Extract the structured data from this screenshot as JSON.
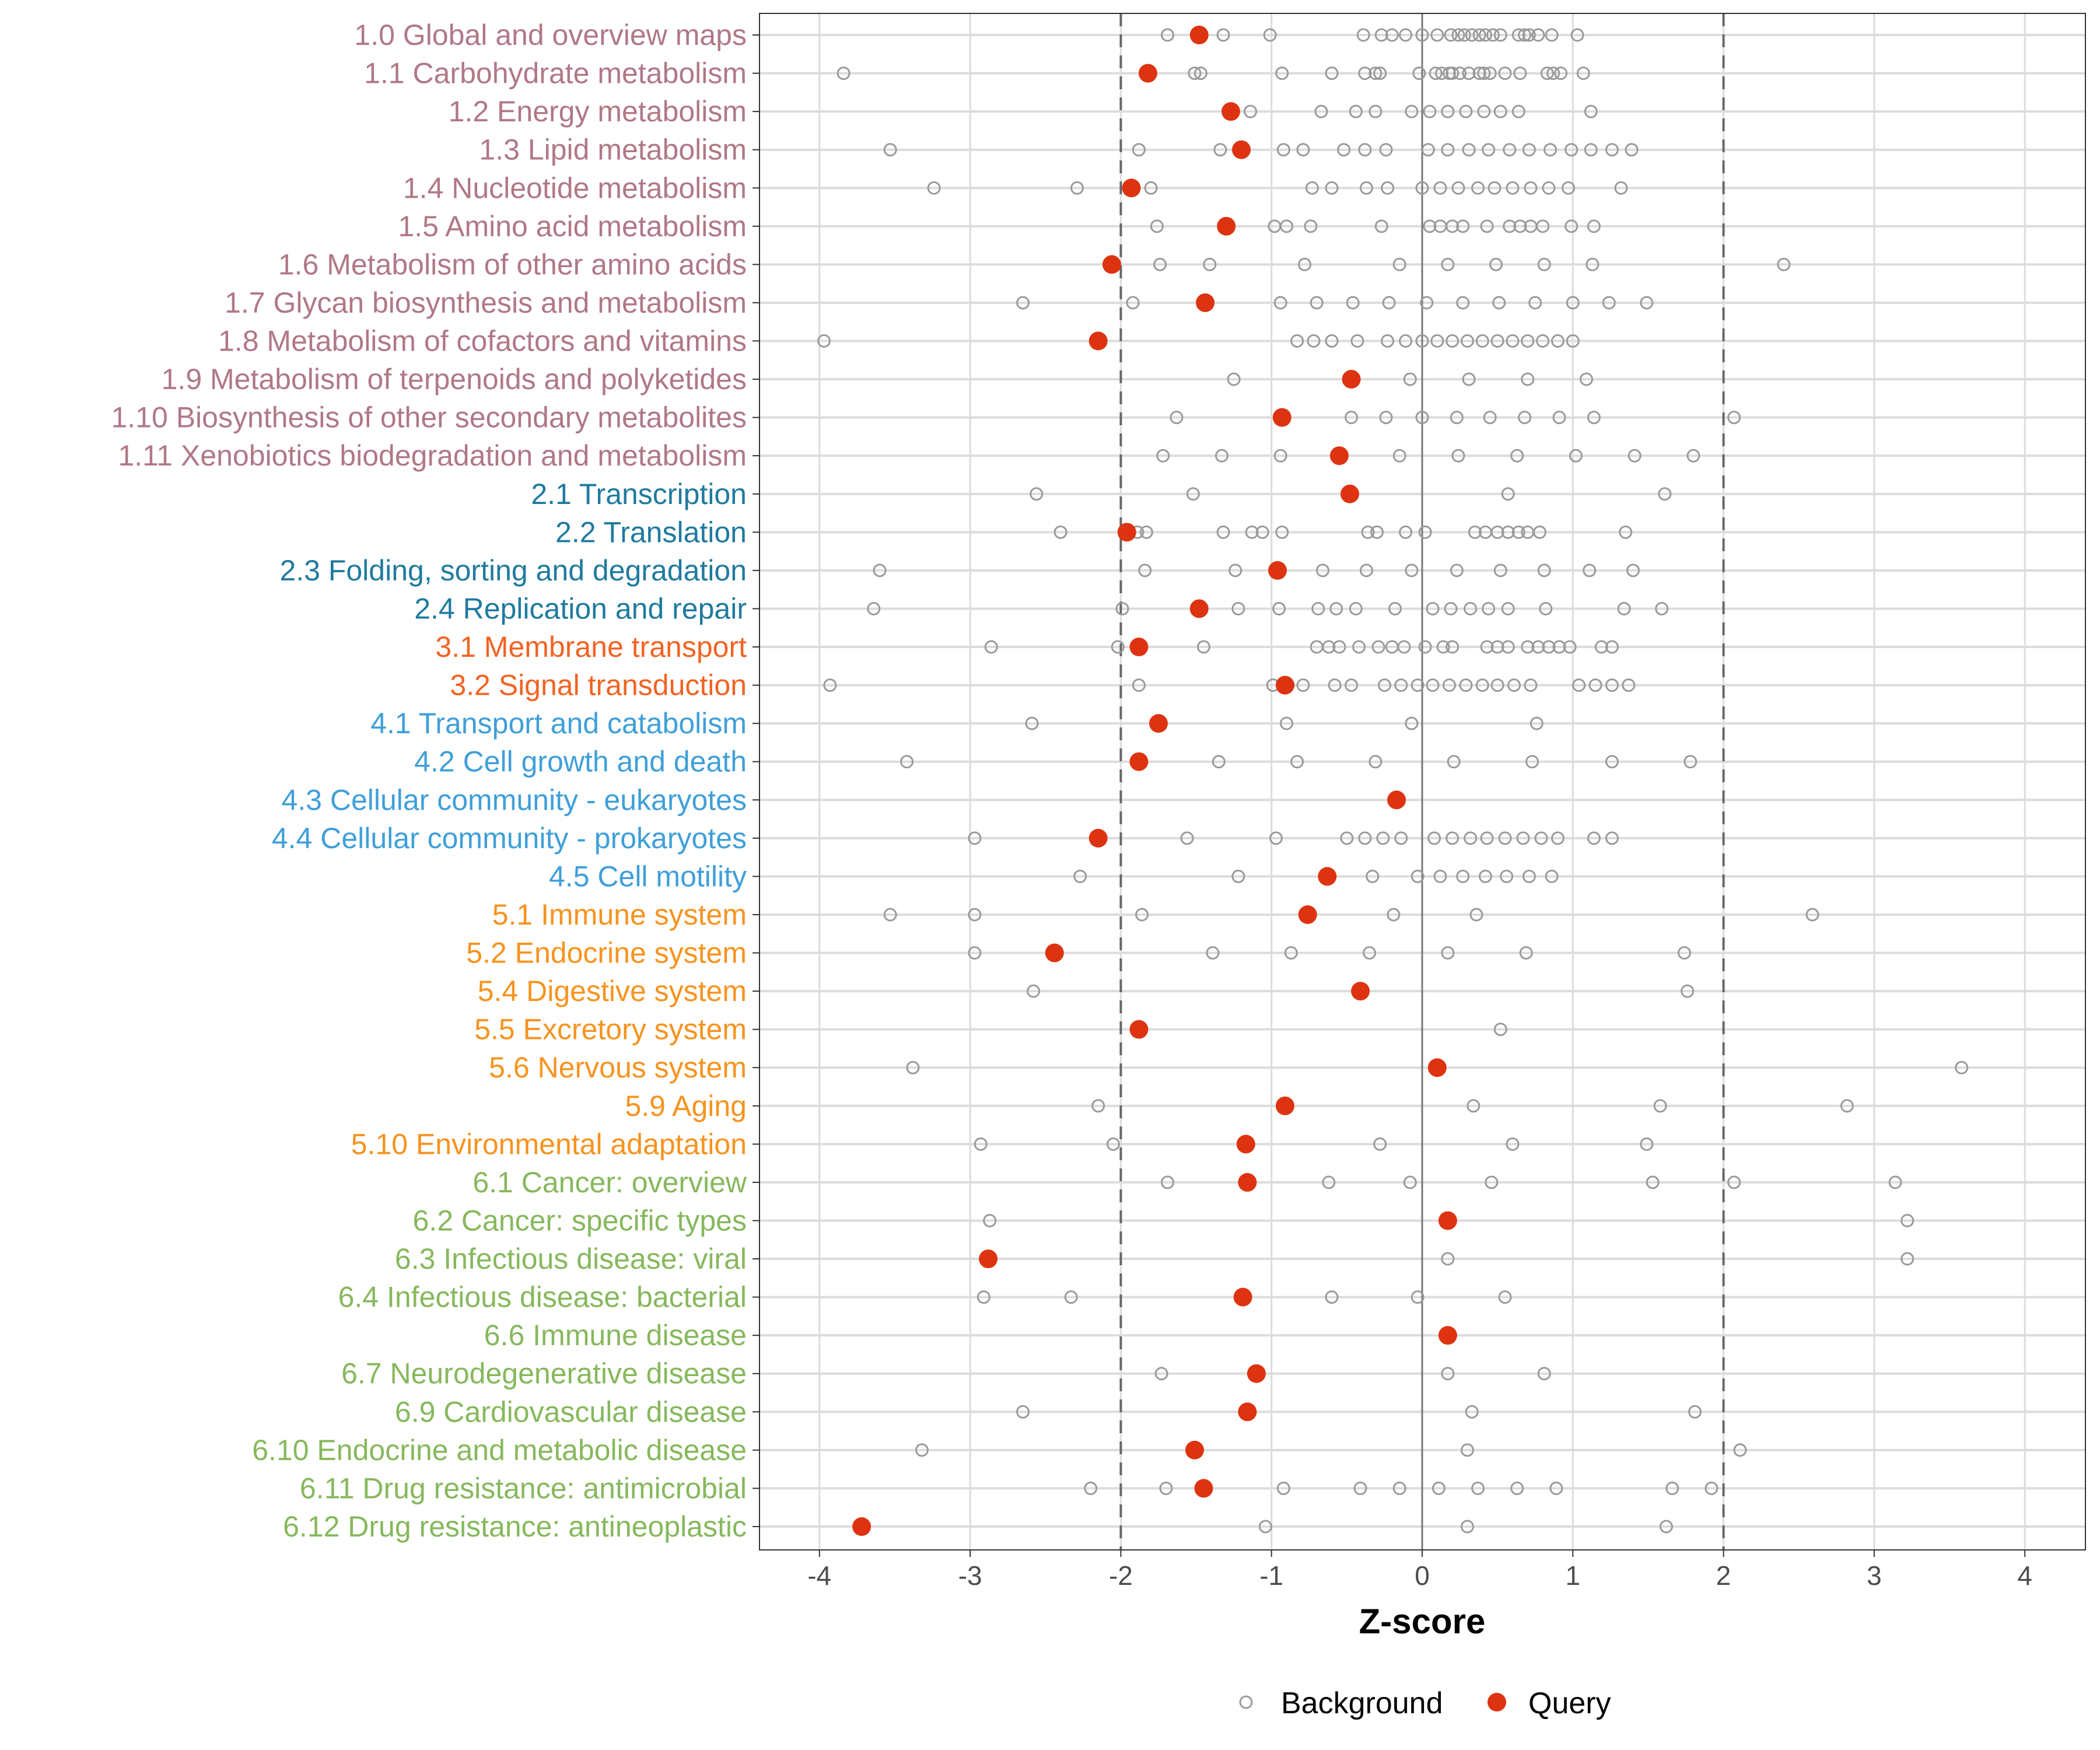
{
  "chart_data": {
    "type": "scatter",
    "title": "",
    "xlabel": "Z-score",
    "ylabel": "",
    "xlim": [
      -4.45,
      4.4
    ],
    "xticks": [
      -4,
      -3,
      -2,
      -1,
      0,
      1,
      2,
      3,
      4
    ],
    "xtick_labels": [
      "-4",
      "-3",
      "-2",
      "-1",
      "0",
      "1",
      "2",
      "3",
      "4"
    ],
    "reference_lines": {
      "dashed": [
        -2,
        2
      ],
      "solid": [
        0
      ]
    },
    "grid": true,
    "legend": {
      "placement": "bottom",
      "entries": [
        "Background",
        "Query"
      ]
    },
    "colors": {
      "query": "#dd3311",
      "background": "#9a9a9a",
      "group_1": "#b07886",
      "group_2": "#1f7a9e",
      "group_3": "#f26322",
      "group_4": "#3f9fd9",
      "group_5": "#f7931e",
      "group_6": "#86b85c"
    },
    "categories": [
      {
        "label": "1.0 Global and overview maps",
        "group": 1,
        "query": -1.48,
        "background": [
          -1.69,
          -1.32,
          -1.01,
          -0.39,
          -0.27,
          -0.2,
          -0.11,
          0,
          0.1,
          0.19,
          0.24,
          0.28,
          0.33,
          0.38,
          0.42,
          0.47,
          0.52,
          0.64,
          0.68,
          0.71,
          0.77,
          0.86,
          1.03
        ]
      },
      {
        "label": "1.1 Carbohydrate metabolism",
        "group": 1,
        "query": -1.82,
        "background": [
          -3.84,
          -1.51,
          -1.47,
          -0.93,
          -0.6,
          -0.38,
          -0.31,
          -0.28,
          -0.02,
          0.09,
          0.13,
          0.18,
          0.2,
          0.25,
          0.31,
          0.38,
          0.41,
          0.45,
          0.55,
          0.65,
          0.83,
          0.87,
          0.92,
          1.07
        ]
      },
      {
        "label": "1.2 Energy metabolism",
        "group": 1,
        "query": -1.27,
        "background": [
          -1.14,
          -0.67,
          -0.44,
          -0.31,
          -0.07,
          0.05,
          0.17,
          0.29,
          0.41,
          0.52,
          0.64,
          1.12
        ]
      },
      {
        "label": "1.3 Lipid metabolism",
        "group": 1,
        "query": -1.2,
        "background": [
          -3.53,
          -1.88,
          -1.34,
          -0.92,
          -0.79,
          -0.52,
          -0.38,
          -0.24,
          0.04,
          0.17,
          0.31,
          0.44,
          0.58,
          0.71,
          0.85,
          0.99,
          1.12,
          1.26,
          1.39
        ]
      },
      {
        "label": "1.4 Nucleotide metabolism",
        "group": 1,
        "query": -1.93,
        "background": [
          -3.24,
          -2.29,
          -1.8,
          -0.73,
          -0.6,
          -0.37,
          -0.23,
          0,
          0.12,
          0.24,
          0.37,
          0.48,
          0.6,
          0.72,
          0.84,
          0.97,
          1.32
        ]
      },
      {
        "label": "1.5 Amino acid metabolism",
        "group": 1,
        "query": -1.3,
        "background": [
          -1.76,
          -0.98,
          -0.9,
          -0.74,
          -0.27,
          0.05,
          0.12,
          0.2,
          0.27,
          0.43,
          0.58,
          0.65,
          0.72,
          0.8,
          0.99,
          1.14
        ]
      },
      {
        "label": "1.6 Metabolism of other amino acids",
        "group": 1,
        "query": -2.06,
        "background": [
          -1.74,
          -1.41,
          -0.78,
          -0.15,
          0.17,
          0.49,
          0.81,
          1.13,
          2.4
        ]
      },
      {
        "label": "1.7 Glycan biosynthesis and metabolism",
        "group": 1,
        "query": -1.44,
        "background": [
          -2.65,
          -1.92,
          -0.94,
          -0.7,
          -0.46,
          -0.22,
          0.03,
          0.27,
          0.51,
          0.75,
          1.0,
          1.24,
          1.49
        ]
      },
      {
        "label": "1.8 Metabolism of cofactors and vitamins",
        "group": 1,
        "query": -2.15,
        "background": [
          -3.97,
          -0.83,
          -0.72,
          -0.6,
          -0.43,
          -0.23,
          -0.11,
          0,
          0.1,
          0.2,
          0.3,
          0.4,
          0.5,
          0.6,
          0.7,
          0.8,
          0.9,
          1.0
        ]
      },
      {
        "label": "1.9 Metabolism of terpenoids and polyketides",
        "group": 1,
        "query": -0.47,
        "background": [
          -1.25,
          -0.08,
          0.31,
          0.7,
          1.09
        ]
      },
      {
        "label": "1.10 Biosynthesis of other secondary metabolites",
        "group": 1,
        "query": -0.93,
        "background": [
          -1.63,
          -0.47,
          -0.24,
          0,
          0.23,
          0.45,
          0.68,
          0.91,
          1.14,
          2.07
        ]
      },
      {
        "label": "1.11 Xenobiotics biodegradation and metabolism",
        "group": 1,
        "query": -0.55,
        "background": [
          -1.72,
          -1.33,
          -0.94,
          -0.15,
          0.24,
          0.63,
          1.02,
          1.41,
          1.8
        ]
      },
      {
        "label": "2.1 Transcription",
        "group": 2,
        "query": -0.48,
        "background": [
          -2.56,
          -1.52,
          0.57,
          1.61
        ]
      },
      {
        "label": "2.2 Translation",
        "group": 2,
        "query": -1.96,
        "background": [
          -2.4,
          -1.89,
          -1.83,
          -1.32,
          -1.13,
          -1.06,
          -0.93,
          -0.36,
          -0.3,
          -0.11,
          0.02,
          0.35,
          0.42,
          0.5,
          0.57,
          0.64,
          0.7,
          0.78,
          1.35
        ]
      },
      {
        "label": "2.3 Folding, sorting and degradation",
        "group": 2,
        "query": -0.96,
        "background": [
          -3.6,
          -1.84,
          -1.24,
          -0.66,
          -0.37,
          -0.07,
          0.23,
          0.52,
          0.81,
          1.11,
          1.4
        ]
      },
      {
        "label": "2.4 Replication and repair",
        "group": 2,
        "query": -1.48,
        "background": [
          -3.64,
          -1.99,
          -1.22,
          -0.95,
          -0.69,
          -0.57,
          -0.44,
          -0.18,
          0.07,
          0.19,
          0.32,
          0.44,
          0.57,
          0.82,
          1.34,
          1.59
        ]
      },
      {
        "label": "3.1 Membrane transport",
        "group": 3,
        "query": -1.88,
        "background": [
          -2.86,
          -2.02,
          -1.45,
          -0.7,
          -0.62,
          -0.55,
          -0.42,
          -0.29,
          -0.2,
          -0.12,
          0.02,
          0.14,
          0.2,
          0.43,
          0.5,
          0.57,
          0.7,
          0.77,
          0.84,
          0.91,
          0.98,
          1.19,
          1.26
        ]
      },
      {
        "label": "3.2 Signal transduction",
        "group": 3,
        "query": -0.91,
        "background": [
          -3.93,
          -1.88,
          -0.99,
          -0.89,
          -0.79,
          -0.58,
          -0.47,
          -0.25,
          -0.14,
          -0.03,
          0.07,
          0.18,
          0.29,
          0.4,
          0.5,
          0.61,
          0.72,
          1.04,
          1.15,
          1.26,
          1.37
        ]
      },
      {
        "label": "4.1 Transport and catabolism",
        "group": 4,
        "query": -1.75,
        "background": [
          -2.59,
          -0.9,
          -0.07,
          0.76
        ]
      },
      {
        "label": "4.2 Cell growth and death",
        "group": 4,
        "query": -1.88,
        "background": [
          -3.42,
          -1.35,
          -0.83,
          -0.31,
          0.21,
          0.73,
          1.26,
          1.78
        ]
      },
      {
        "label": "4.3 Cellular community - eukaryotes",
        "group": 4,
        "query": -0.17,
        "background": []
      },
      {
        "label": "4.4 Cellular community - prokaryotes",
        "group": 4,
        "query": -2.15,
        "background": [
          -2.97,
          -1.56,
          -0.97,
          -0.5,
          -0.38,
          -0.26,
          -0.14,
          0.08,
          0.2,
          0.32,
          0.43,
          0.55,
          0.67,
          0.79,
          0.9,
          1.14,
          1.26
        ]
      },
      {
        "label": "4.5 Cell motility",
        "group": 4,
        "query": -0.63,
        "background": [
          -2.27,
          -1.22,
          -0.33,
          -0.03,
          0.12,
          0.27,
          0.42,
          0.56,
          0.71,
          0.86
        ]
      },
      {
        "label": "5.1 Immune system",
        "group": 5,
        "query": -0.76,
        "background": [
          -3.53,
          -2.97,
          -1.86,
          -0.19,
          0.36,
          2.59
        ]
      },
      {
        "label": "5.2 Endocrine system",
        "group": 5,
        "query": -2.44,
        "background": [
          -2.97,
          -1.39,
          -0.87,
          -0.35,
          0.17,
          0.69,
          1.74
        ]
      },
      {
        "label": "5.4 Digestive system",
        "group": 5,
        "query": -0.41,
        "background": [
          -2.58,
          1.76
        ]
      },
      {
        "label": "5.5 Excretory system",
        "group": 5,
        "query": -1.88,
        "background": [
          0.52
        ]
      },
      {
        "label": "5.6 Nervous system",
        "group": 5,
        "query": 0.1,
        "background": [
          -3.38,
          3.58
        ]
      },
      {
        "label": "5.9 Aging",
        "group": 5,
        "query": -0.91,
        "background": [
          -2.15,
          0.34,
          1.58,
          2.82
        ]
      },
      {
        "label": "5.10 Environmental adaptation",
        "group": 5,
        "query": -1.17,
        "background": [
          -2.93,
          -2.05,
          -0.28,
          0.6,
          1.49
        ]
      },
      {
        "label": "6.1 Cancer: overview",
        "group": 6,
        "query": -1.16,
        "background": [
          -1.69,
          -0.62,
          -0.08,
          0.46,
          1.53,
          2.07,
          3.14
        ]
      },
      {
        "label": "6.2 Cancer: specific types",
        "group": 6,
        "query": 0.17,
        "background": [
          -2.87,
          3.22
        ]
      },
      {
        "label": "6.3 Infectious disease: viral",
        "group": 6,
        "query": -2.88,
        "background": [
          0.17,
          3.22
        ]
      },
      {
        "label": "6.4 Infectious disease: bacterial",
        "group": 6,
        "query": -1.19,
        "background": [
          -2.91,
          -2.33,
          -0.6,
          -0.03,
          0.55
        ]
      },
      {
        "label": "6.6 Immune disease",
        "group": 6,
        "query": 0.17,
        "background": []
      },
      {
        "label": "6.7 Neurodegenerative disease",
        "group": 6,
        "query": -1.1,
        "background": [
          -1.73,
          0.17,
          0.81
        ]
      },
      {
        "label": "6.9 Cardiovascular disease",
        "group": 6,
        "query": -1.16,
        "background": [
          -2.65,
          0.33,
          1.81
        ]
      },
      {
        "label": "6.10 Endocrine and metabolic disease",
        "group": 6,
        "query": -1.51,
        "background": [
          -3.32,
          0.3,
          2.11
        ]
      },
      {
        "label": "6.11 Drug resistance: antimicrobial",
        "group": 6,
        "query": -1.45,
        "background": [
          -2.2,
          -1.7,
          -0.92,
          -0.41,
          -0.15,
          0.11,
          0.37,
          0.63,
          0.89,
          1.66,
          1.92
        ]
      },
      {
        "label": "6.12 Drug resistance: antineoplastic",
        "group": 6,
        "query": -3.72,
        "background": [
          -1.04,
          0.3,
          1.62
        ]
      }
    ]
  }
}
